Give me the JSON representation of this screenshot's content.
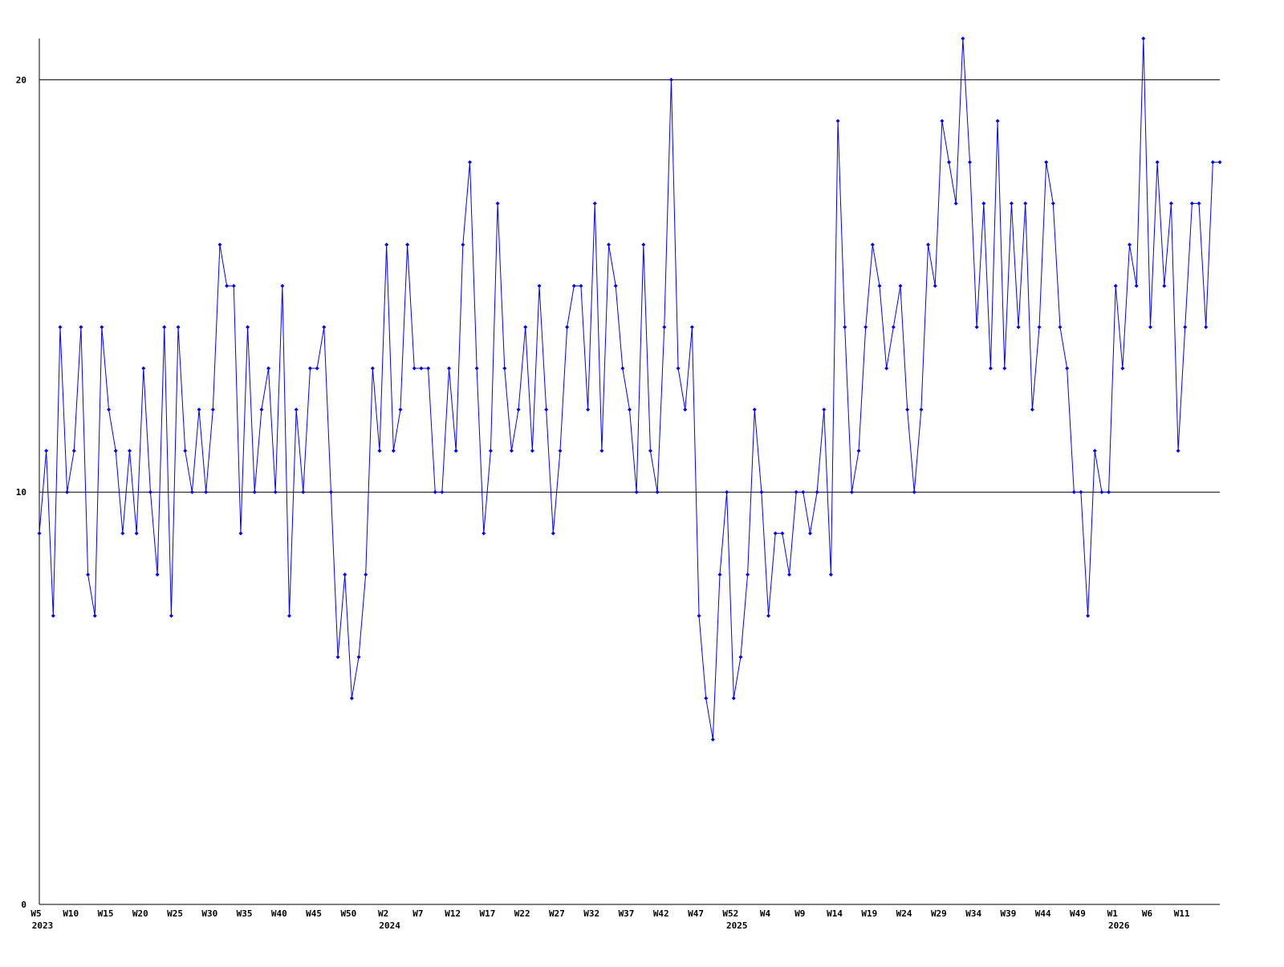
{
  "chart_data": {
    "type": "line",
    "categories": [
      "W5",
      null,
      null,
      null,
      null,
      "W10",
      null,
      null,
      null,
      null,
      "W15",
      null,
      null,
      null,
      null,
      "W20",
      null,
      null,
      null,
      null,
      "W25",
      null,
      null,
      null,
      null,
      "W30",
      null,
      null,
      null,
      null,
      "W35",
      null,
      null,
      null,
      null,
      "W40",
      null,
      null,
      null,
      null,
      "W45",
      null,
      null,
      null,
      null,
      "W50",
      null,
      null,
      null,
      null,
      "W2",
      null,
      null,
      null,
      null,
      "W7",
      null,
      null,
      null,
      null,
      "W12",
      null,
      null,
      null,
      null,
      "W17",
      null,
      null,
      null,
      null,
      "W22",
      null,
      null,
      null,
      null,
      "W27",
      null,
      null,
      null,
      null,
      "W32",
      null,
      null,
      null,
      null,
      "W37",
      null,
      null,
      null,
      null,
      "W42",
      null,
      null,
      null,
      null,
      "W47",
      null,
      null,
      null,
      null,
      "W52",
      null,
      null,
      null,
      null,
      "W4",
      null,
      null,
      null,
      null,
      "W9",
      null,
      null,
      null,
      null,
      "W14",
      null,
      null,
      null,
      null,
      "W19",
      null,
      null,
      null,
      null,
      "W24",
      null,
      null,
      null,
      null,
      "W29",
      null,
      null,
      null,
      null,
      "W34",
      null,
      null,
      null,
      null,
      "W39",
      null,
      null,
      null,
      null,
      "W44",
      null,
      null,
      null,
      null,
      "W49",
      null,
      null,
      null,
      null,
      "W1",
      null,
      null,
      null,
      null,
      "W6",
      null,
      null,
      null,
      null,
      "W11",
      null,
      null,
      null,
      null,
      null
    ],
    "category_years": [
      "2023",
      null,
      null,
      null,
      null,
      null,
      null,
      null,
      null,
      null,
      null,
      null,
      null,
      null,
      null,
      null,
      null,
      null,
      null,
      null,
      null,
      null,
      null,
      null,
      null,
      null,
      null,
      null,
      null,
      null,
      null,
      null,
      null,
      null,
      null,
      null,
      null,
      null,
      null,
      null,
      null,
      null,
      null,
      null,
      null,
      null,
      null,
      null,
      null,
      null,
      "2024",
      null,
      null,
      null,
      null,
      null,
      null,
      null,
      null,
      null,
      null,
      null,
      null,
      null,
      null,
      null,
      null,
      null,
      null,
      null,
      null,
      null,
      null,
      null,
      null,
      null,
      null,
      null,
      null,
      null,
      null,
      null,
      null,
      null,
      null,
      null,
      null,
      null,
      null,
      null,
      null,
      null,
      null,
      null,
      null,
      null,
      null,
      null,
      null,
      null,
      "2025",
      null,
      null,
      null,
      null,
      null,
      null,
      null,
      null,
      null,
      null,
      null,
      null,
      null,
      null,
      null,
      null,
      null,
      null,
      null,
      null,
      null,
      null,
      null,
      null,
      null,
      null,
      null,
      null,
      null,
      null,
      null,
      null,
      null,
      null,
      null,
      null,
      null,
      null,
      null,
      null,
      null,
      null,
      null,
      null,
      null,
      null,
      null,
      null,
      null,
      null,
      null,
      null,
      null,
      null,
      "2026",
      null,
      null,
      null,
      null,
      null,
      null,
      null,
      null,
      null,
      null,
      null,
      null,
      null,
      null,
      null
    ],
    "values": [
      9,
      11,
      7,
      14,
      10,
      11,
      14,
      8,
      7,
      14,
      12,
      11,
      9,
      11,
      9,
      13,
      10,
      8,
      14,
      7,
      14,
      11,
      10,
      12,
      10,
      12,
      16,
      15,
      15,
      9,
      14,
      10,
      12,
      13,
      10,
      15,
      7,
      12,
      10,
      13,
      13,
      14,
      10,
      6,
      8,
      5,
      6,
      8,
      13,
      11,
      16,
      11,
      12,
      16,
      13,
      13,
      13,
      10,
      10,
      13,
      11,
      16,
      18,
      13,
      9,
      11,
      17,
      13,
      11,
      12,
      14,
      11,
      15,
      12,
      9,
      11,
      14,
      15,
      15,
      12,
      17,
      11,
      16,
      15,
      13,
      12,
      10,
      16,
      11,
      10,
      14,
      20,
      13,
      12,
      14,
      7,
      5,
      4,
      8,
      10,
      5,
      6,
      8,
      12,
      10,
      7,
      9,
      9,
      8,
      10,
      10,
      9,
      10,
      12,
      8,
      19,
      14,
      10,
      11,
      14,
      16,
      15,
      13,
      14,
      15,
      12,
      10,
      12,
      16,
      15,
      19,
      18,
      17,
      21,
      18,
      14,
      17,
      13,
      19,
      13,
      17,
      14,
      17,
      12,
      14,
      18,
      17,
      14,
      13,
      10,
      10,
      7,
      11,
      10,
      10,
      15,
      13,
      16,
      15,
      21,
      14,
      18,
      15,
      17,
      11,
      14,
      17,
      17,
      14,
      18,
      18
    ],
    "color": "#0000ff",
    "ylim": [
      0,
      21
    ],
    "yticks": [
      0,
      10,
      20
    ],
    "grid": true
  }
}
